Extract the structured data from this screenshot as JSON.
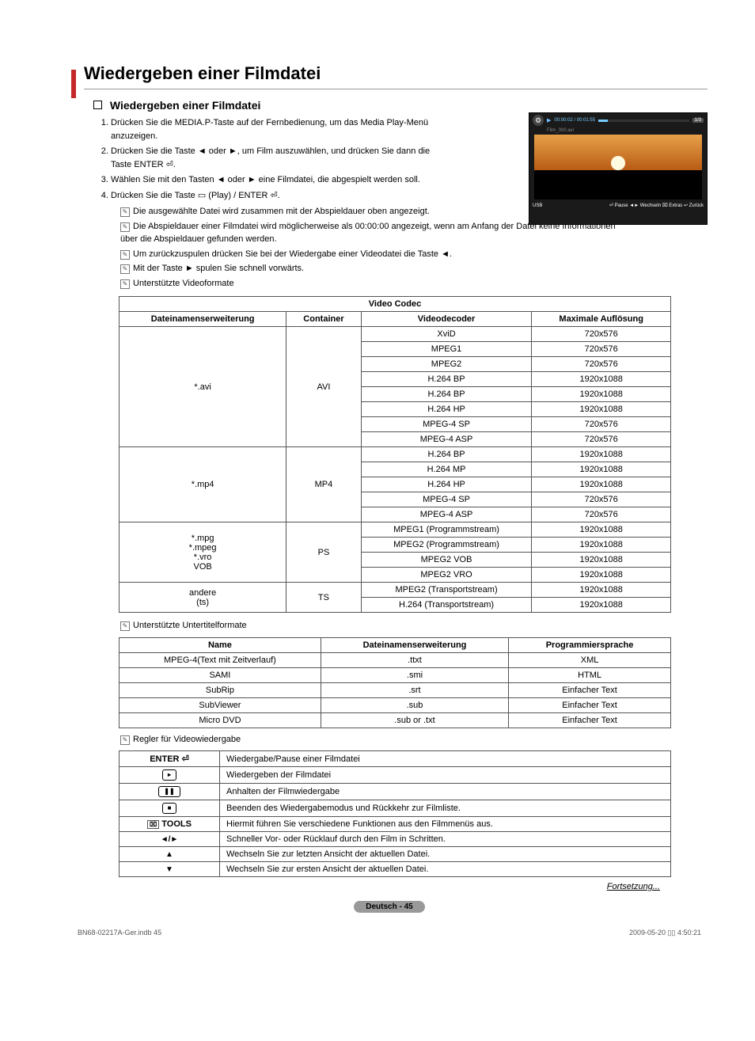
{
  "title": "Wiedergeben einer Filmdatei",
  "section_head": "Wiedergeben einer Filmdatei",
  "steps": [
    "Drücken Sie die MEDIA.P-Taste auf der Fernbedienung, um das Media Play-Menü anzuzeigen.",
    "Drücken Sie die Taste ◄ oder ►, um Film auszuwählen, und drücken Sie dann die Taste ENTER ⏎.",
    "Wählen Sie mit den Tasten ◄ oder ► eine Filmdatei, die abgespielt werden soll.",
    "Drücken Sie die Taste ▭ (Play) / ENTER ⏎."
  ],
  "notes_top": [
    "Die ausgewählte Datei wird zusammen mit der Abspieldauer oben angezeigt.",
    "Die Abspieldauer einer Filmdatei wird möglicherweise als 00:00:00 angezeigt, wenn am Anfang der Datei keine Informationen über die Abspieldauer gefunden werden.",
    "Um zurückzuspulen drücken Sie bei der Wiedergabe einer Videodatei die Taste ◄.",
    "Mit der Taste ► spulen Sie schnell vorwärts.",
    "Unterstützte Videoformate"
  ],
  "codec_table": {
    "top_header": "Video Codec",
    "headers": [
      "Dateinamenserweiterung",
      "Container",
      "Videodecoder",
      "Maximale Auflösung"
    ],
    "groups": [
      {
        "ext": "*.avi",
        "container": "AVI",
        "rows": [
          [
            "XviD",
            "720x576"
          ],
          [
            "MPEG1",
            "720x576"
          ],
          [
            "MPEG2",
            "720x576"
          ],
          [
            "H.264 BP",
            "1920x1088"
          ],
          [
            "H.264 BP",
            "1920x1088"
          ],
          [
            "H.264 HP",
            "1920x1088"
          ],
          [
            "MPEG-4 SP",
            "720x576"
          ],
          [
            "MPEG-4 ASP",
            "720x576"
          ]
        ]
      },
      {
        "ext": "*.mp4",
        "container": "MP4",
        "rows": [
          [
            "H.264 BP",
            "1920x1088"
          ],
          [
            "H.264 MP",
            "1920x1088"
          ],
          [
            "H.264 HP",
            "1920x1088"
          ],
          [
            "MPEG-4 SP",
            "720x576"
          ],
          [
            "MPEG-4 ASP",
            "720x576"
          ]
        ]
      },
      {
        "ext": "*.mpg\n*.mpeg\n*.vro\nVOB",
        "container": "PS",
        "rows": [
          [
            "MPEG1 (Programmstream)",
            "1920x1088"
          ],
          [
            "MPEG2 (Programmstream)",
            "1920x1088"
          ],
          [
            "MPEG2 VOB",
            "1920x1088"
          ],
          [
            "MPEG2 VRO",
            "1920x1088"
          ]
        ]
      },
      {
        "ext": "andere\n(ts)",
        "container": "TS",
        "rows": [
          [
            "MPEG2 (Transportstream)",
            "1920x1088"
          ],
          [
            "H.264 (Transportstream)",
            "1920x1088"
          ]
        ]
      }
    ]
  },
  "note_subtitle": "Unterstützte Untertitelformate",
  "subtitle_table": {
    "headers": [
      "Name",
      "Dateinamenserweiterung",
      "Programmiersprache"
    ],
    "rows": [
      [
        "MPEG-4(Text mit Zeitverlauf)",
        ".ttxt",
        "XML"
      ],
      [
        "SAMI",
        ".smi",
        "HTML"
      ],
      [
        "SubRip",
        ".srt",
        "Einfacher Text"
      ],
      [
        "SubViewer",
        ".sub",
        "Einfacher Text"
      ],
      [
        "Micro DVD",
        ".sub or .txt",
        "Einfacher Text"
      ]
    ]
  },
  "note_controls": "Regler für Videowiedergabe",
  "controls_table": {
    "rows": [
      {
        "key": "ENTER ⏎",
        "desc": "Wiedergabe/Pause einer Filmdatei"
      },
      {
        "key": "▸",
        "btn": true,
        "desc": "Wiedergeben der Filmdatei"
      },
      {
        "key": "❚❚",
        "btn": true,
        "desc": "Anhalten der Filmwiedergabe"
      },
      {
        "key": "■",
        "btn": true,
        "desc": "Beenden des Wiedergabemodus und Rückkehr zur Filmliste."
      },
      {
        "key": "TOOLS",
        "tools": true,
        "desc": "Hiermit führen Sie verschiedene Funktionen aus den Filmmenüs aus."
      },
      {
        "key": "◄/►",
        "desc": "Schneller Vor- oder Rücklauf durch den Film in Schritten."
      },
      {
        "key": "▲",
        "desc": "Wechseln Sie zur letzten Ansicht der aktuellen Datei."
      },
      {
        "key": "▼",
        "desc": "Wechseln Sie zur ersten Ansicht der aktuellen Datei."
      }
    ]
  },
  "thumb": {
    "time": "00:00:02 / 00:01:55",
    "counter": "1/3",
    "filename": "Film_000.avi",
    "usb": "USB",
    "bottom": "⏎ Pause  ◄► Wechseln  ⌧ Extras  ↩ Zurück"
  },
  "continue": "Fortsetzung...",
  "badge": "Deutsch - 45",
  "foot_left": "BN68-02217A-Ger.indb   45",
  "foot_right": "2009-05-20   ▯▯ 4:50:21"
}
